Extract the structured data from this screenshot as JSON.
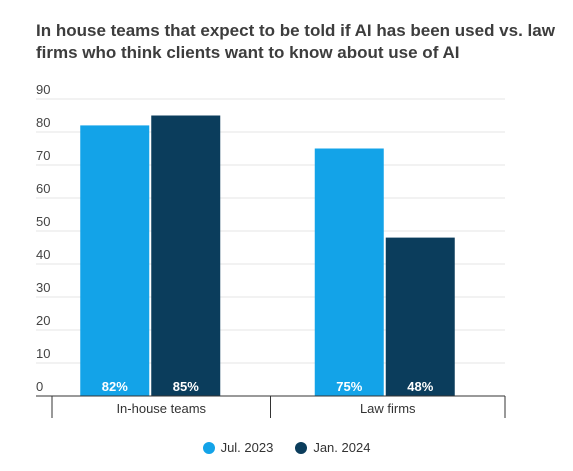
{
  "chart_data": {
    "type": "bar",
    "title": "In house teams that expect to be told if AI has been used vs. law firms who think clients want to know about use of AI",
    "categories": [
      "In-house teams",
      "Law firms"
    ],
    "series": [
      {
        "name": "Jul. 2023",
        "values": [
          82,
          75
        ],
        "labels": [
          "82%",
          "75%"
        ],
        "color": "#13a3e8"
      },
      {
        "name": "Jan. 2024",
        "values": [
          85,
          48
        ],
        "labels": [
          "85%",
          "48%"
        ],
        "color": "#0b3d5c"
      }
    ],
    "yticks": [
      0,
      10,
      20,
      30,
      40,
      50,
      60,
      70,
      80,
      90
    ],
    "ylim": [
      0,
      90
    ],
    "grid": true,
    "legend_position": "bottom"
  }
}
